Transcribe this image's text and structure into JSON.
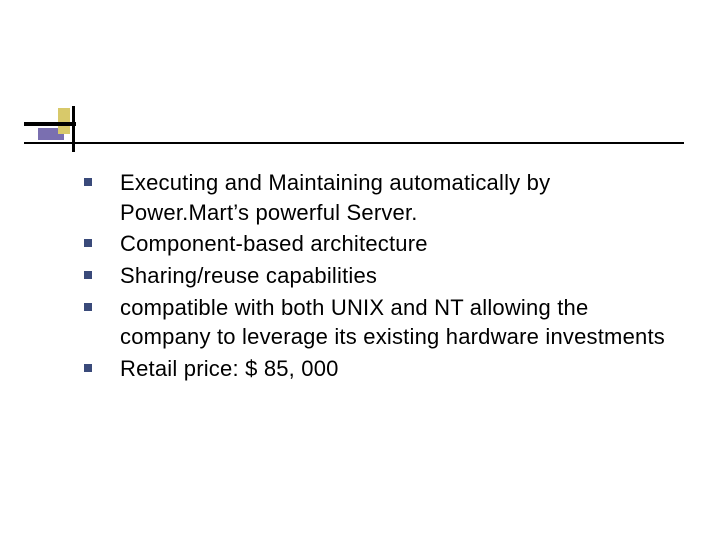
{
  "slide": {
    "type": "bulleted-slide",
    "background_color": "#ffffff",
    "text_color": "#000000",
    "bullet_color": "#3a4a7a",
    "font_family": "Arial",
    "font_size_pt": 16,
    "decoration": {
      "violet_block": "#7a6fb0",
      "yellow_block": "#d8c96a",
      "line_color": "#000000"
    },
    "bullets": [
      "Executing and Maintaining automatically by Power.Mart’s powerful Server.",
      "Component-based architecture",
      "Sharing/reuse capabilities",
      "compatible with both UNIX and NT allowing the company to leverage its existing hardware investments",
      "Retail price: $ 85, 000"
    ]
  }
}
